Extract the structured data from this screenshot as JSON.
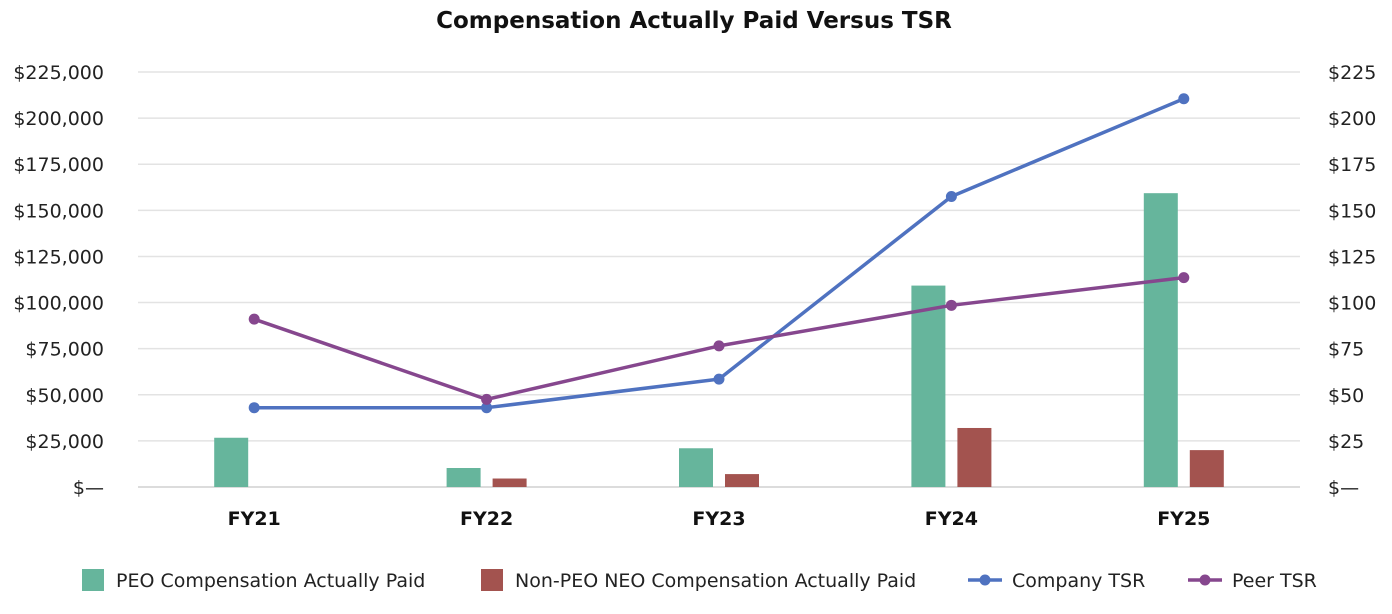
{
  "chart_data": {
    "type": "bar",
    "title": "Compensation Actually Paid Versus TSR",
    "categories": [
      "FY21",
      "FY22",
      "FY23",
      "FY24",
      "FY25"
    ],
    "bar_series": [
      {
        "name": "PEO Compensation Actually Paid",
        "color": "#66b59c",
        "values": [
          26700,
          10300,
          21000,
          109200,
          159300
        ]
      },
      {
        "name": "Non-PEO NEO Compensation Actually Paid",
        "color": "#a3534f",
        "values": [
          0,
          4600,
          7000,
          32000,
          20000
        ]
      }
    ],
    "line_series": [
      {
        "name": "Company TSR",
        "color": "#4f72c0",
        "values": [
          43,
          43,
          58.5,
          157.5,
          210.5
        ]
      },
      {
        "name": "Peer TSR",
        "color": "#86478e",
        "values": [
          91,
          47.5,
          76.5,
          98.5,
          113.5
        ]
      }
    ],
    "y_left": {
      "ylim": [
        0,
        225000
      ],
      "ticks": [
        "$—",
        "$25,000",
        "$50,000",
        "$75,000",
        "$100,000",
        "$125,000",
        "$150,000",
        "$175,000",
        "$200,000",
        "$225,000"
      ]
    },
    "y_right": {
      "ylim": [
        0,
        225
      ],
      "ticks": [
        "$—",
        "$25",
        "$50",
        "$75",
        "$100",
        "$125",
        "$150",
        "$175",
        "$200",
        "$225"
      ]
    },
    "grid": true,
    "legend_position": "bottom"
  }
}
